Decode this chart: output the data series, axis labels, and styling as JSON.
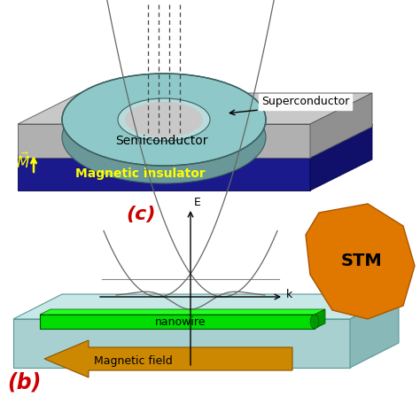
{
  "bg_color": "#ffffff",
  "top_panel": {
    "mag_color_front": "#1a1a8c",
    "mag_color_top": "#2020aa",
    "mag_color_side": "#10106a",
    "semi_color_front": "#b0b0b0",
    "semi_color_top": "#c8c8c8",
    "semi_color_side": "#909090",
    "ring_color_outer": "#8ab8b8",
    "ring_color_inner": "#b0d0d0",
    "ring_color_hole": "#c0d8d8",
    "superconductor_label": "Superconductor",
    "semiconductor_label": "Semiconductor",
    "magnetic_label": "Magnetic insulator"
  },
  "bottom_panel": {
    "sub_color_top": "#c8e8e8",
    "sub_color_front": "#a8d0d0",
    "sub_color_side": "#88b8b8",
    "nanowire_color_front": "#00dd00",
    "nanowire_color_top": "#22ff22",
    "nanowire_color_side": "#009900",
    "nanowire_label": "nanowire",
    "arrow_color": "#cc8800",
    "arrow_label": "Magnetic field",
    "stm_color": "#e07800",
    "stm_label": "STM",
    "panel_label": "(b)",
    "panel_label_color": "#cc0000",
    "dispersion_label": "(c)",
    "dispersion_label_color": "#cc0000"
  }
}
